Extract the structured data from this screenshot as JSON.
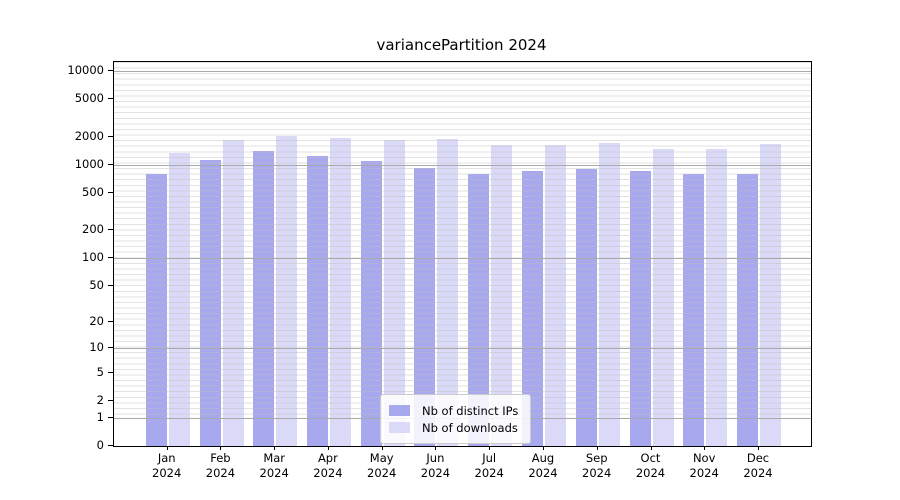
{
  "figure": {
    "background": "#ffffff"
  },
  "chart_data": {
    "type": "bar",
    "title": "variancePartition 2024",
    "categories": [
      "Jan",
      "Feb",
      "Mar",
      "Apr",
      "May",
      "Jun",
      "Jul",
      "Aug",
      "Sep",
      "Oct",
      "Nov",
      "Dec"
    ],
    "x_sublabel": "2024",
    "series": [
      {
        "name": "Nb of distinct IPs",
        "color": "#a8a8ef",
        "values": [
          800,
          1120,
          1410,
          1250,
          1100,
          915,
          790,
          860,
          910,
          850,
          805,
          795
        ]
      },
      {
        "name": "Nb of downloads",
        "color": "#dadaf8",
        "values": [
          1330,
          1850,
          2050,
          1930,
          1840,
          1880,
          1610,
          1625,
          1700,
          1460,
          1480,
          1660
        ]
      }
    ],
    "xlabel": "",
    "ylabel": "",
    "y_axis": {
      "ticks": [
        0,
        1,
        2,
        5,
        10,
        20,
        50,
        100,
        200,
        500,
        1000,
        2000,
        5000,
        10000
      ],
      "major_gridlines_at": [
        1,
        10,
        100,
        1000,
        10000
      ],
      "scale": "log10(1+x)",
      "range": [
        0,
        12000
      ]
    },
    "grid": {
      "on": true,
      "major_color": "#a9a9a9",
      "minor_color": "#d8d8d8"
    },
    "legend": {
      "position": "inside-bottom-center",
      "items": [
        "Nb of distinct IPs",
        "Nb of downloads"
      ]
    }
  }
}
